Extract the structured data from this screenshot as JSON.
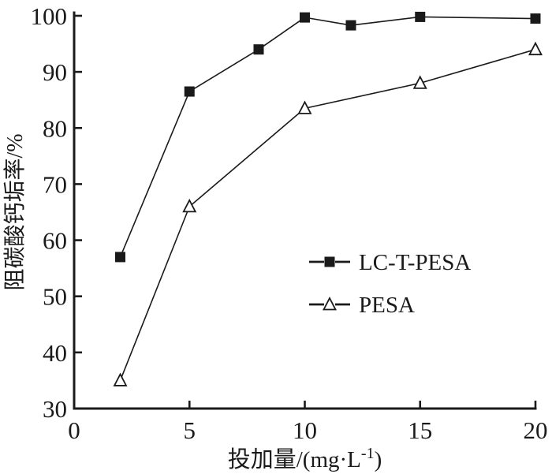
{
  "figure": {
    "background": "#ffffff",
    "ink_color": "#1a1a1a"
  },
  "chart_data": {
    "type": "line",
    "title": "",
    "xlabel_prefix": "投加量/(mg·L",
    "xlabel_superscript": "-1",
    "xlabel_suffix": ")",
    "ylabel": "阻碳酸钙垢率/%",
    "xlim": [
      0,
      20
    ],
    "ylim": [
      30,
      100
    ],
    "xticks": [
      "0",
      "5",
      "10",
      "15",
      "20"
    ],
    "yticks": [
      "30",
      "40",
      "50",
      "60",
      "70",
      "80",
      "90",
      "100"
    ],
    "grid": false,
    "legend_position": "center-right",
    "series": [
      {
        "name": "LC-T-PESA",
        "marker": "filled-square",
        "line_style": "solid",
        "color": "#1a1a1a",
        "x": [
          2,
          5,
          8,
          10,
          12,
          15,
          20
        ],
        "y": [
          57,
          86.5,
          94,
          99.7,
          98.3,
          99.8,
          99.5
        ]
      },
      {
        "name": "PESA",
        "marker": "open-triangle",
        "line_style": "solid",
        "color": "#1a1a1a",
        "x": [
          2,
          5,
          10,
          15,
          20
        ],
        "y": [
          35,
          66,
          83.5,
          88,
          94
        ]
      }
    ]
  }
}
